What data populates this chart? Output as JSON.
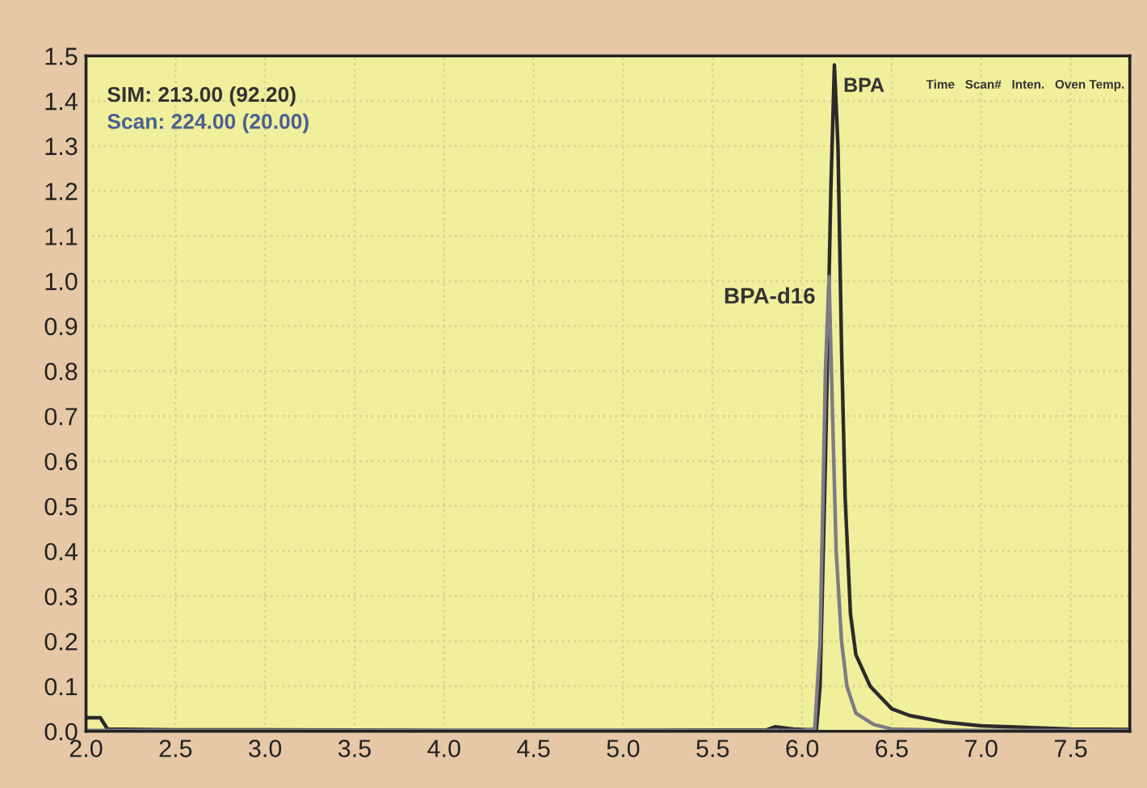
{
  "chart_data": {
    "type": "line",
    "x": [
      2.0,
      2.08,
      2.12,
      2.5,
      3.0,
      4.0,
      5.0,
      5.8,
      5.85,
      5.95,
      6.05,
      6.08,
      6.1,
      6.13,
      6.16,
      6.18,
      6.2,
      6.22,
      6.24,
      6.27,
      6.3,
      6.38,
      6.5,
      6.6,
      6.8,
      7.0,
      7.5,
      7.83
    ],
    "series": [
      {
        "name": "BPA",
        "color": "#2b2b2b",
        "values": [
          0.03,
          0.03,
          0.005,
          0.003,
          0.003,
          0.002,
          0.002,
          0.003,
          0.01,
          0.005,
          0.003,
          0.005,
          0.1,
          0.6,
          1.2,
          1.48,
          1.3,
          0.85,
          0.52,
          0.26,
          0.17,
          0.1,
          0.05,
          0.035,
          0.02,
          0.012,
          0.005,
          0.004
        ]
      },
      {
        "name": "BPA-d16",
        "color": "#7c7c84",
        "x": [
          2.0,
          3.0,
          4.0,
          5.0,
          6.0,
          6.07,
          6.1,
          6.13,
          6.15,
          6.17,
          6.19,
          6.22,
          6.25,
          6.3,
          6.4,
          6.5,
          6.7,
          7.0,
          7.83
        ],
        "values": [
          0.002,
          0.002,
          0.002,
          0.002,
          0.002,
          0.005,
          0.2,
          0.8,
          1.01,
          0.7,
          0.4,
          0.2,
          0.1,
          0.04,
          0.015,
          0.005,
          0.003,
          0.002,
          0.002
        ]
      }
    ],
    "xlim": [
      2.0,
      7.83
    ],
    "ylim": [
      0,
      1.5
    ],
    "xticks": [
      {
        "value": 2,
        "label": "2.0"
      },
      2.5,
      {
        "value": 3,
        "label": "3.0"
      },
      3.5,
      {
        "value": 4,
        "label": "4.0"
      },
      4.5,
      {
        "value": 5,
        "label": "5.0"
      },
      5.5,
      {
        "value": 6,
        "label": "6.0"
      },
      6.5,
      {
        "value": 7,
        "label": "7.0"
      },
      7.5
    ],
    "yticks": [
      {
        "value": 0,
        "label": "0.0"
      },
      0.1,
      0.2,
      0.3,
      0.4,
      0.5,
      0.6,
      0.7,
      0.8,
      0.9,
      {
        "value": 1,
        "label": "1.0"
      },
      1.1,
      1.2,
      1.3,
      1.4,
      1.5
    ],
    "grid": true,
    "legend": false,
    "line_style": "solid",
    "marker": "none",
    "annotations": [
      "SIM: 213.00 (92.20)",
      "Scan: 224.00 (20.00)",
      "Time   Scan#   Inten.   Oven Temp."
    ]
  }
}
